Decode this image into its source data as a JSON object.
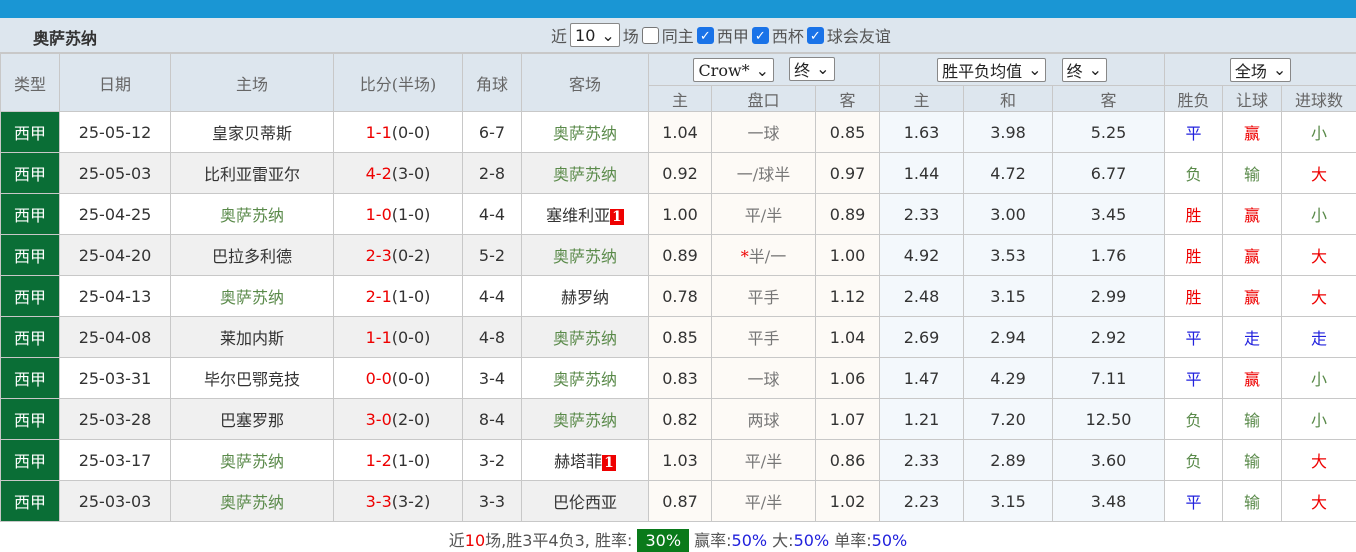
{
  "header": {
    "team": "奥萨苏纳",
    "near_label": "近",
    "count": "10",
    "games_label": "场",
    "same_home": "同主",
    "filters": [
      "西甲",
      "西杯",
      "球会友谊"
    ]
  },
  "columns": {
    "type": "类型",
    "date": "日期",
    "home": "主场",
    "score": "比分(半场)",
    "corner": "角球",
    "away": "客场",
    "company": "Crow*",
    "period1": "终",
    "avg": "胜平负均值",
    "period2": "终",
    "scope": "全场",
    "h_home": "主",
    "h_line": "盘口",
    "h_away": "客",
    "e_home": "主",
    "e_draw": "和",
    "e_away": "客",
    "res": "胜负",
    "ah": "让球",
    "ou": "进球数"
  },
  "rows": [
    {
      "type": "西甲",
      "date": "25-05-12",
      "home": "皇家贝蒂斯",
      "ft": "1-1",
      "ht": "(0-0)",
      "corner": "6-7",
      "away": "奥萨苏纳",
      "away_badge": "",
      "h1": "1.04",
      "line": "一球",
      "star": "",
      "h2": "0.85",
      "e1": "1.63",
      "ed": "3.98",
      "e2": "5.25",
      "res": "平",
      "ah": "赢",
      "ou": "小"
    },
    {
      "type": "西甲",
      "date": "25-05-03",
      "home": "比利亚雷亚尔",
      "ft": "4-2",
      "ht": "(3-0)",
      "corner": "2-8",
      "away": "奥萨苏纳",
      "away_badge": "",
      "h1": "0.92",
      "line": "一/球半",
      "star": "",
      "h2": "0.97",
      "e1": "1.44",
      "ed": "4.72",
      "e2": "6.77",
      "res": "负",
      "ah": "输",
      "ou": "大"
    },
    {
      "type": "西甲",
      "date": "25-04-25",
      "home": "奥萨苏纳",
      "ft": "1-0",
      "ht": "(1-0)",
      "corner": "4-4",
      "away": "塞维利亚",
      "away_badge": "1",
      "h1": "1.00",
      "line": "平/半",
      "star": "",
      "h2": "0.89",
      "e1": "2.33",
      "ed": "3.00",
      "e2": "3.45",
      "res": "胜",
      "ah": "赢",
      "ou": "小"
    },
    {
      "type": "西甲",
      "date": "25-04-20",
      "home": "巴拉多利德",
      "ft": "2-3",
      "ht": "(0-2)",
      "corner": "5-2",
      "away": "奥萨苏纳",
      "away_badge": "",
      "h1": "0.89",
      "line": "半/一",
      "star": "*",
      "h2": "1.00",
      "e1": "4.92",
      "ed": "3.53",
      "e2": "1.76",
      "res": "胜",
      "ah": "赢",
      "ou": "大"
    },
    {
      "type": "西甲",
      "date": "25-04-13",
      "home": "奥萨苏纳",
      "ft": "2-1",
      "ht": "(1-0)",
      "corner": "4-4",
      "away": "赫罗纳",
      "away_badge": "",
      "h1": "0.78",
      "line": "平手",
      "star": "",
      "h2": "1.12",
      "e1": "2.48",
      "ed": "3.15",
      "e2": "2.99",
      "res": "胜",
      "ah": "赢",
      "ou": "大"
    },
    {
      "type": "西甲",
      "date": "25-04-08",
      "home": "莱加内斯",
      "ft": "1-1",
      "ht": "(0-0)",
      "corner": "4-8",
      "away": "奥萨苏纳",
      "away_badge": "",
      "h1": "0.85",
      "line": "平手",
      "star": "",
      "h2": "1.04",
      "e1": "2.69",
      "ed": "2.94",
      "e2": "2.92",
      "res": "平",
      "ah": "走",
      "ou": "走"
    },
    {
      "type": "西甲",
      "date": "25-03-31",
      "home": "毕尔巴鄂竞技",
      "ft": "0-0",
      "ht": "(0-0)",
      "corner": "3-4",
      "away": "奥萨苏纳",
      "away_badge": "",
      "h1": "0.83",
      "line": "一球",
      "star": "",
      "h2": "1.06",
      "e1": "1.47",
      "ed": "4.29",
      "e2": "7.11",
      "res": "平",
      "ah": "赢",
      "ou": "小"
    },
    {
      "type": "西甲",
      "date": "25-03-28",
      "home": "巴塞罗那",
      "ft": "3-0",
      "ht": "(2-0)",
      "corner": "8-4",
      "away": "奥萨苏纳",
      "away_badge": "",
      "h1": "0.82",
      "line": "两球",
      "star": "",
      "h2": "1.07",
      "e1": "1.21",
      "ed": "7.20",
      "e2": "12.50",
      "res": "负",
      "ah": "输",
      "ou": "小"
    },
    {
      "type": "西甲",
      "date": "25-03-17",
      "home": "奥萨苏纳",
      "ft": "1-2",
      "ht": "(1-0)",
      "corner": "3-2",
      "away": "赫塔菲",
      "away_badge": "1",
      "h1": "1.03",
      "line": "平/半",
      "star": "",
      "h2": "0.86",
      "e1": "2.33",
      "ed": "2.89",
      "e2": "3.60",
      "res": "负",
      "ah": "输",
      "ou": "大"
    },
    {
      "type": "西甲",
      "date": "25-03-03",
      "home": "奥萨苏纳",
      "ft": "3-3",
      "ht": "(3-2)",
      "corner": "3-3",
      "away": "巴伦西亚",
      "away_badge": "",
      "h1": "0.87",
      "line": "平/半",
      "star": "",
      "h2": "1.02",
      "e1": "2.23",
      "ed": "3.15",
      "e2": "3.48",
      "res": "平",
      "ah": "输",
      "ou": "大"
    }
  ],
  "footer": {
    "p1": "近",
    "n": "10",
    "p2": "场,胜3平4负3, 胜率:",
    "win_rate": "30%",
    "p3": "赢率:",
    "ah_rate": "50%",
    "p4": "大:",
    "big_rate": "50%",
    "p5": "单率:",
    "odd_rate": "50%"
  },
  "colors": {
    "league": "#0a6e36",
    "topbar": "#1a96d4",
    "red": "#ee0000",
    "green": "#5a8a4a",
    "blue": "#2222dd"
  }
}
